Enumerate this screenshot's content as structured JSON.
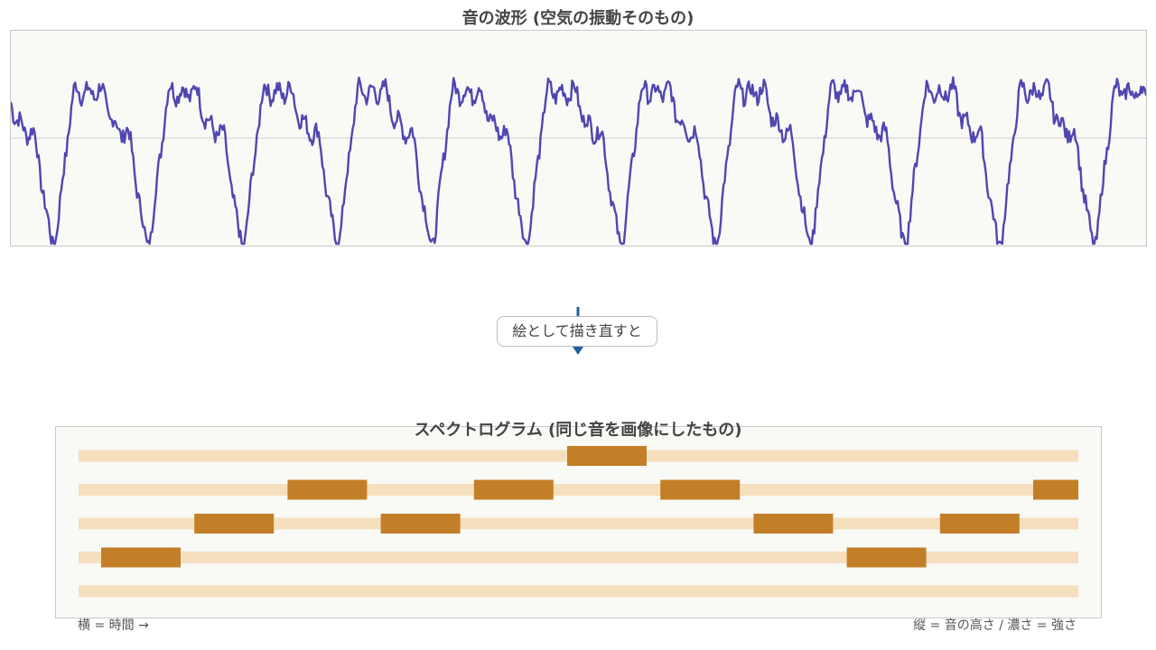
{
  "waveform": {
    "title": "音の波形 (空気の振動そのもの)",
    "line_color": "#5046b0",
    "background": "#f9f9f6",
    "cycles": 12,
    "peak_amplitude_fraction": 0.92
  },
  "transition": {
    "label": "絵として描き直すと",
    "arrow_color": "#1e5f9e"
  },
  "spectrogram": {
    "title": "スペクトログラム (同じ音を画像にしたもの)",
    "x_note": "横 = 時間 →",
    "y_note": "縦 = 音の高さ / 濃さ = 強さ",
    "band_color": "#f6dfbd",
    "note_color": "#c27f27",
    "rows": 5,
    "time_steps": 11,
    "notes": [
      {
        "step": 0,
        "row": 3
      },
      {
        "step": 1,
        "row": 2
      },
      {
        "step": 2,
        "row": 1
      },
      {
        "step": 3,
        "row": 2
      },
      {
        "step": 4,
        "row": 1
      },
      {
        "step": 5,
        "row": 0
      },
      {
        "step": 6,
        "row": 1
      },
      {
        "step": 7,
        "row": 2
      },
      {
        "step": 8,
        "row": 3
      },
      {
        "step": 9,
        "row": 2
      },
      {
        "step": 10,
        "row": 1
      }
    ]
  }
}
